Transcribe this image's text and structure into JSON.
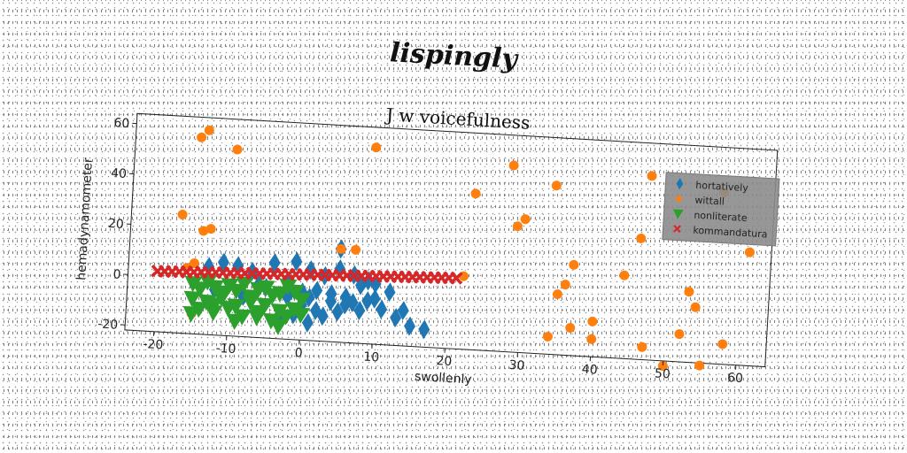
{
  "page": {
    "title": "lispingly"
  },
  "chart_data": {
    "type": "scatter",
    "title": "J w voicefulness",
    "xlabel": "swollenly",
    "ylabel": "hemadynamometer",
    "xlim": [
      -24,
      64
    ],
    "ylim": [
      -22,
      64
    ],
    "xticks": [
      -20,
      -10,
      0,
      10,
      20,
      30,
      40,
      50,
      60
    ],
    "yticks": [
      -20,
      0,
      20,
      40,
      60
    ],
    "grid": false,
    "legend_position": "top-right",
    "series": [
      {
        "name": "hortatively",
        "marker": "diamond",
        "color": "#1f77b4",
        "x": [
          -13,
          -11,
          -9,
          -7,
          -4,
          -1,
          1,
          3,
          5,
          7,
          9,
          -12,
          -8,
          -5,
          -2,
          0,
          2,
          4,
          6,
          8,
          10,
          -3,
          1,
          3,
          5,
          7,
          9,
          11,
          13,
          15,
          17,
          -6,
          -2,
          0,
          2,
          4,
          6,
          8,
          10,
          12,
          14,
          5,
          1,
          -1
        ],
        "y": [
          5,
          7,
          6,
          4,
          8,
          9,
          6,
          4,
          7,
          5,
          3,
          -4,
          -6,
          -2,
          -5,
          -8,
          -10,
          -3,
          -7,
          -9,
          -4,
          -13,
          -15,
          -12,
          -10,
          -6,
          -5,
          -8,
          -11,
          -14,
          -15,
          -1,
          0,
          -3,
          -2,
          -6,
          -4,
          1,
          2,
          -1,
          -8,
          15,
          -5,
          -12
        ]
      },
      {
        "name": "wittall",
        "marker": "circle",
        "color": "#ff7f0e",
        "x": [
          -15,
          -14,
          -10,
          -17,
          -14,
          -13,
          -15,
          -16,
          9,
          5,
          7,
          23,
          22,
          28,
          29,
          30,
          34,
          35,
          37,
          36,
          37,
          40,
          40,
          34,
          44,
          47,
          47,
          52,
          53,
          57,
          55,
          58,
          61,
          54,
          50,
          46,
          -15
        ],
        "y": [
          56,
          59,
          52,
          25,
          19,
          20,
          6,
          4,
          56,
          15,
          15,
          40,
          7,
          52,
          28,
          31,
          45,
          2,
          14,
          6,
          -11,
          -8,
          -15,
          -15,
          11,
          51,
          -17,
          -11,
          6,
          46,
          -23,
          -14,
          23,
          0,
          -24,
          26,
          -14
        ]
      },
      {
        "name": "nonliterate",
        "marker": "triangle-down",
        "color": "#2ca02c",
        "x": [
          -15,
          -14,
          -13,
          -12,
          -11,
          -10,
          -9,
          -8,
          -7,
          -6,
          -5,
          -4,
          -3,
          -2,
          -1,
          0,
          -15,
          -13,
          -11,
          -9,
          -7,
          -5,
          -3,
          -1,
          -14,
          -12,
          -10,
          -8,
          -6,
          -4,
          -2,
          0,
          -15,
          -12,
          -9,
          -6,
          -3
        ],
        "y": [
          -2,
          -4,
          -1,
          -3,
          -5,
          -2,
          -4,
          -1,
          -6,
          -3,
          -2,
          -5,
          -4,
          -1,
          -3,
          -6,
          -8,
          -9,
          -7,
          -10,
          -8,
          -9,
          -11,
          -10,
          -12,
          -13,
          -11,
          -14,
          -12,
          -15,
          -13,
          -12,
          -14,
          -10,
          -16,
          -14,
          -17
        ]
      },
      {
        "name": "kommandatura",
        "marker": "x",
        "color": "#d62728",
        "x": [
          -20,
          -19,
          -18,
          -17,
          -16,
          -15,
          -14,
          -13,
          -12,
          -11,
          -10,
          -9,
          -8,
          -7,
          -6,
          -5,
          -4,
          -3,
          -2,
          -1,
          0,
          1,
          2,
          3,
          4,
          5,
          6,
          7,
          8,
          9,
          10,
          11,
          12,
          13,
          14,
          15,
          16,
          17,
          18,
          19,
          20,
          21
        ],
        "y": [
          2,
          2.1,
          2.2,
          2.3,
          2.4,
          2.5,
          2.6,
          2.7,
          2.8,
          2.9,
          3,
          3.1,
          3.2,
          3.3,
          3.4,
          3.5,
          3.6,
          3.7,
          3.8,
          3.9,
          4,
          4.1,
          4.2,
          4.3,
          4.4,
          4.5,
          4.6,
          4.7,
          4.8,
          4.9,
          5,
          5.1,
          5.2,
          5.3,
          5.4,
          5.5,
          5.6,
          5.7,
          5.8,
          5.9,
          6,
          6.1
        ]
      }
    ]
  }
}
